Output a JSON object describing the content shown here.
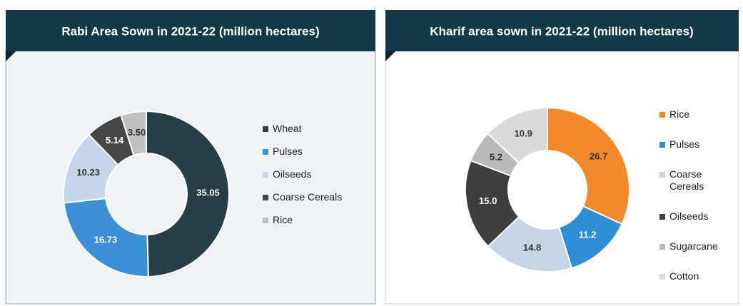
{
  "chart_data": [
    {
      "type": "pie",
      "title": "Rabi Area Sown in 2021-22 (million hectares)",
      "categories": [
        "Wheat",
        "Pulses",
        "Oilseeds",
        "Coarse Cereals",
        "Rice"
      ],
      "values": [
        35.05,
        16.73,
        10.23,
        5.14,
        3.5
      ],
      "value_labels": [
        "35.05",
        "16.73",
        "10.23",
        "5.14",
        "3.50"
      ],
      "colors": [
        "#263f47",
        "#3a8fd5",
        "#c6d6ea",
        "#474747",
        "#c0c0c0"
      ]
    },
    {
      "type": "pie",
      "title": "Kharif area sown in 2021-22 (million hectares)",
      "categories": [
        "Rice",
        "Pulses",
        "Coarse Cereals",
        "Oilseeds",
        "Sugarcane",
        "Cotton"
      ],
      "values": [
        26.7,
        11.2,
        14.8,
        15.0,
        5.2,
        10.9
      ],
      "value_labels": [
        "26.7",
        "11.2",
        "14.8",
        "15.0",
        "5.2",
        "10.9"
      ],
      "colors": [
        "#f28a2c",
        "#2f8fd6",
        "#c7d4e7",
        "#3e3e3e",
        "#b9b9b9",
        "#dadada"
      ]
    }
  ]
}
